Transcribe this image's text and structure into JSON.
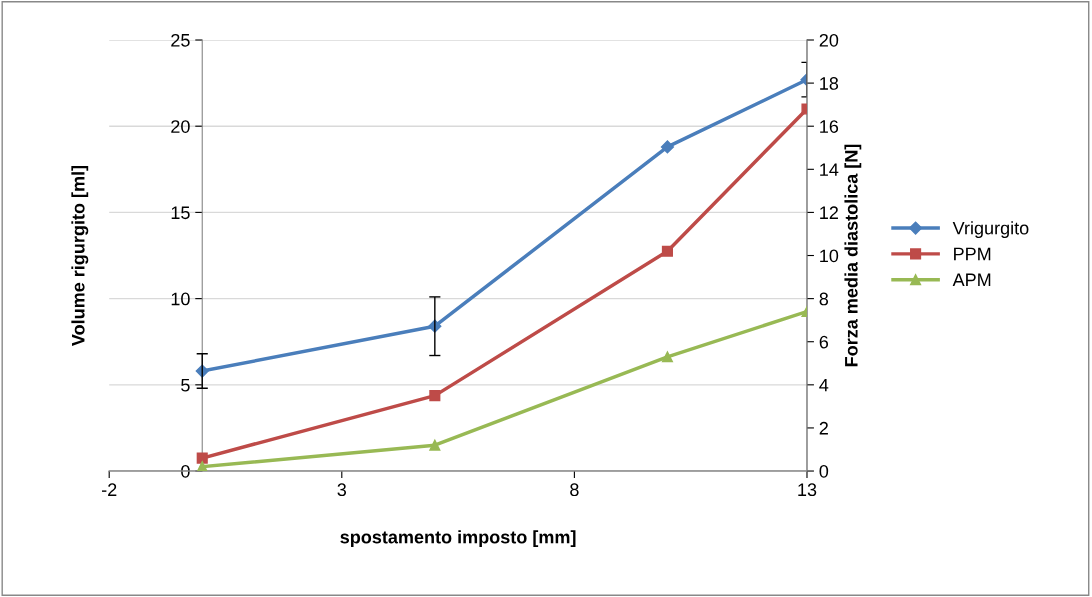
{
  "chart_data": {
    "type": "line",
    "xlabel": "spostamento imposto [mm]",
    "ylabel": "Volume rigurgito [ml]",
    "y2label": "Forza media diastolica [N]",
    "x": [
      0,
      5,
      10,
      13
    ],
    "series": [
      {
        "name": "Vrigurgito",
        "color": "#4a7ebb",
        "marker": "diamond",
        "values": [
          5.8,
          8.4,
          18.8,
          22.7
        ],
        "errors": [
          1,
          1.7,
          null,
          1
        ]
      },
      {
        "name": "PPM",
        "color": "#be4b48",
        "marker": "square",
        "axis": "y2",
        "values": [
          0.6,
          3.5,
          10.2,
          16.8
        ]
      },
      {
        "name": "APM",
        "color": "#98b954",
        "marker": "triangle",
        "axis": "y2",
        "values": [
          0.2,
          1.2,
          5.3,
          7.4
        ]
      }
    ],
    "xlim": [
      -2,
      13
    ],
    "xticks": [
      -2,
      3,
      8,
      13
    ],
    "ylim": [
      0,
      25
    ],
    "yticks": [
      0,
      5,
      10,
      15,
      20,
      25
    ],
    "y2lim": [
      0,
      20
    ],
    "y2ticks": [
      0,
      2,
      4,
      6,
      8,
      10,
      12,
      14,
      16,
      18,
      20
    ],
    "grid": "y",
    "legend": "right",
    "line_style": "solid"
  }
}
